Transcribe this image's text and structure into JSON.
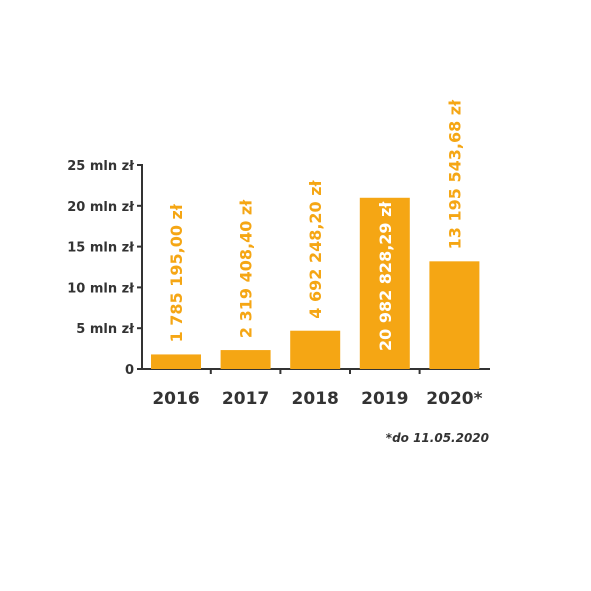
{
  "chart_data": {
    "type": "bar",
    "categories": [
      "2016",
      "2017",
      "2018",
      "2019",
      "2020*"
    ],
    "values": [
      1785195.0,
      2319408.4,
      4692248.2,
      20982828.29,
      13195543.68
    ],
    "data_labels": [
      "1 785 195,00 zł",
      "2 319 408,40 zł",
      "4 692 248,20 zł",
      "20 982 828,29 zł",
      "13 195 543,68 zł"
    ],
    "y_ticks": [
      {
        "value": 0,
        "label": "0"
      },
      {
        "value": 5000000,
        "label": "5 mln zł"
      },
      {
        "value": 10000000,
        "label": "10 mln zł"
      },
      {
        "value": 15000000,
        "label": "15 mln zł"
      },
      {
        "value": 20000000,
        "label": "20 mln zł"
      },
      {
        "value": 25000000,
        "label": "25 mln zł"
      }
    ],
    "ylim": [
      0,
      25000000
    ],
    "title": "",
    "xlabel": "",
    "ylabel": "",
    "grid": false,
    "note": "*do 11.05.2020",
    "colors": {
      "bar": "#f5a614",
      "label_outside": "#f5a614",
      "label_inside": "#ffffff",
      "axis": "#333333"
    }
  }
}
